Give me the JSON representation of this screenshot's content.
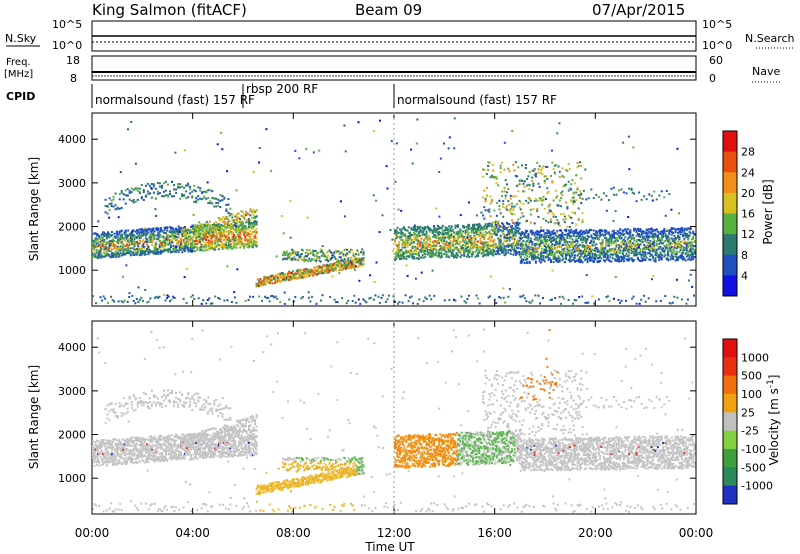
{
  "header": {
    "title": "King Salmon (fitACF)",
    "beam": "Beam 09",
    "date": "07/Apr/2015"
  },
  "status": {
    "nsky_label": "N.Sky",
    "nsearch_label": "N.Search",
    "freq_label": "Freq.",
    "freq_unit": "[MHz]",
    "nave_label": "Nave",
    "cpid_label": "CPID",
    "left_ticks_top": [
      "10^5",
      "10^0"
    ],
    "right_ticks_top": [
      "10^5",
      "10^0"
    ],
    "left_ticks_freq": [
      "18",
      "8"
    ],
    "right_ticks_nave": [
      "60",
      "0"
    ],
    "cpid_segments": [
      {
        "label": "normalsound (fast) 157 RF",
        "start_h": 0.0,
        "end_h": 6.0
      },
      {
        "label": "rbsp 200 RF",
        "start_h": 6.0,
        "end_h": 12.0
      },
      {
        "label": "normalsound (fast) 157 RF",
        "start_h": 12.0,
        "end_h": 24.0
      }
    ]
  },
  "chart_data": [
    {
      "type": "heatmap",
      "panel": "power",
      "ylabel": "Slant Range [km]",
      "xlabel": "Time UT",
      "x_ticks": [
        "00:00",
        "04:00",
        "08:00",
        "12:00",
        "16:00",
        "20:00",
        "00:00"
      ],
      "y_ticks": [
        1000,
        2000,
        3000,
        4000
      ],
      "ylim": [
        180,
        4600
      ],
      "xlim_hours": [
        0,
        24
      ],
      "colorbar": {
        "label": "Power [dB]",
        "ticks": [
          4,
          8,
          12,
          16,
          20,
          24,
          28
        ],
        "colors": [
          "#1010e0",
          "#2050c0",
          "#2a7a70",
          "#58b040",
          "#d8c020",
          "#f0901a",
          "#e85010",
          "#e01010"
        ]
      },
      "features": [
        {
          "name": "main band",
          "x_range_h": [
            0,
            6.5
          ],
          "range_km": [
            1350,
            1900
          ]
        },
        {
          "name": "main band",
          "x_range_h": [
            12,
            24
          ],
          "range_km": [
            1300,
            2000
          ]
        },
        {
          "name": "near band",
          "x_range_h": [
            6.5,
            10.5
          ],
          "range_km": [
            700,
            1300
          ]
        }
      ]
    },
    {
      "type": "heatmap",
      "panel": "velocity",
      "ylabel": "Slant Range [km]",
      "xlabel": "Time UT",
      "x_ticks": [
        "00:00",
        "04:00",
        "08:00",
        "12:00",
        "16:00",
        "20:00",
        "00:00"
      ],
      "y_ticks": [
        1000,
        2000,
        3000,
        4000
      ],
      "ylim": [
        180,
        4600
      ],
      "xlim_hours": [
        0,
        24
      ],
      "colorbar": {
        "label": "Velocity [m s",
        "label_sup": "-1",
        "label_end": "]",
        "ticks": [
          "1000",
          "500",
          "100",
          "25",
          "-25",
          "-100",
          "-500",
          "-1000"
        ],
        "colors": [
          "#2030c0",
          "#2a8a5a",
          "#40a040",
          "#80d040",
          "#c0c0c0",
          "#f0a010",
          "#f07010",
          "#e83010",
          "#e01010"
        ]
      }
    }
  ]
}
